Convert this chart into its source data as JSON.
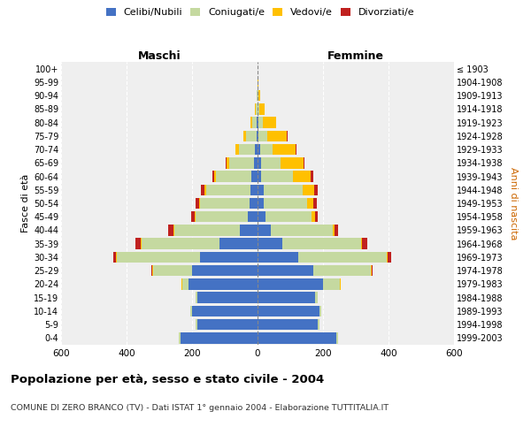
{
  "age_groups": [
    "0-4",
    "5-9",
    "10-14",
    "15-19",
    "20-24",
    "25-29",
    "30-34",
    "35-39",
    "40-44",
    "45-49",
    "50-54",
    "55-59",
    "60-64",
    "65-69",
    "70-74",
    "75-79",
    "80-84",
    "85-89",
    "90-94",
    "95-99",
    "100+"
  ],
  "birth_years": [
    "1999-2003",
    "1994-1998",
    "1989-1993",
    "1984-1988",
    "1979-1983",
    "1974-1978",
    "1969-1973",
    "1964-1968",
    "1959-1963",
    "1954-1958",
    "1949-1953",
    "1944-1948",
    "1939-1943",
    "1934-1938",
    "1929-1933",
    "1924-1928",
    "1919-1923",
    "1914-1918",
    "1909-1913",
    "1904-1908",
    "≤ 1903"
  ],
  "maschi": {
    "celibi": [
      235,
      185,
      200,
      185,
      210,
      200,
      175,
      115,
      55,
      30,
      25,
      22,
      18,
      12,
      8,
      4,
      2,
      1,
      0,
      0,
      0
    ],
    "coniugati": [
      5,
      5,
      5,
      5,
      20,
      120,
      255,
      240,
      200,
      160,
      150,
      135,
      110,
      75,
      50,
      30,
      15,
      5,
      2,
      1,
      0
    ],
    "vedovi": [
      0,
      0,
      0,
      0,
      2,
      2,
      2,
      2,
      2,
      2,
      3,
      5,
      5,
      8,
      10,
      10,
      5,
      3,
      1,
      0,
      0
    ],
    "divorziati": [
      0,
      0,
      0,
      0,
      0,
      3,
      8,
      15,
      15,
      10,
      12,
      10,
      5,
      2,
      0,
      0,
      0,
      0,
      0,
      0,
      0
    ]
  },
  "femmine": {
    "nubili": [
      240,
      185,
      190,
      175,
      200,
      170,
      125,
      75,
      40,
      25,
      20,
      18,
      12,
      10,
      7,
      4,
      2,
      1,
      0,
      0,
      0
    ],
    "coniugate": [
      5,
      5,
      5,
      10,
      50,
      175,
      270,
      240,
      190,
      140,
      130,
      120,
      95,
      60,
      40,
      25,
      15,
      5,
      3,
      1,
      0
    ],
    "vedove": [
      0,
      0,
      0,
      0,
      3,
      3,
      3,
      5,
      5,
      10,
      20,
      35,
      55,
      70,
      70,
      60,
      40,
      15,
      5,
      1,
      0
    ],
    "divorziate": [
      0,
      0,
      0,
      0,
      1,
      3,
      10,
      15,
      10,
      10,
      12,
      12,
      8,
      3,
      2,
      2,
      0,
      0,
      0,
      0,
      0
    ]
  },
  "colors": {
    "celibi": "#4472c4",
    "coniugati": "#c5d9a0",
    "vedovi": "#ffc000",
    "divorziati": "#c0211f"
  },
  "title": "Popolazione per età, sesso e stato civile - 2004",
  "subtitle": "COMUNE DI ZERO BRANCO (TV) - Dati ISTAT 1° gennaio 2004 - Elaborazione TUTTITALIA.IT",
  "ylabel_left": "Fasce di età",
  "ylabel_right": "Anni di nascita",
  "header_left": "Maschi",
  "header_right": "Femmine",
  "xlim": 600,
  "bg_color": "#ffffff",
  "plot_bg": "#efefef",
  "grid_color": "#cccccc"
}
